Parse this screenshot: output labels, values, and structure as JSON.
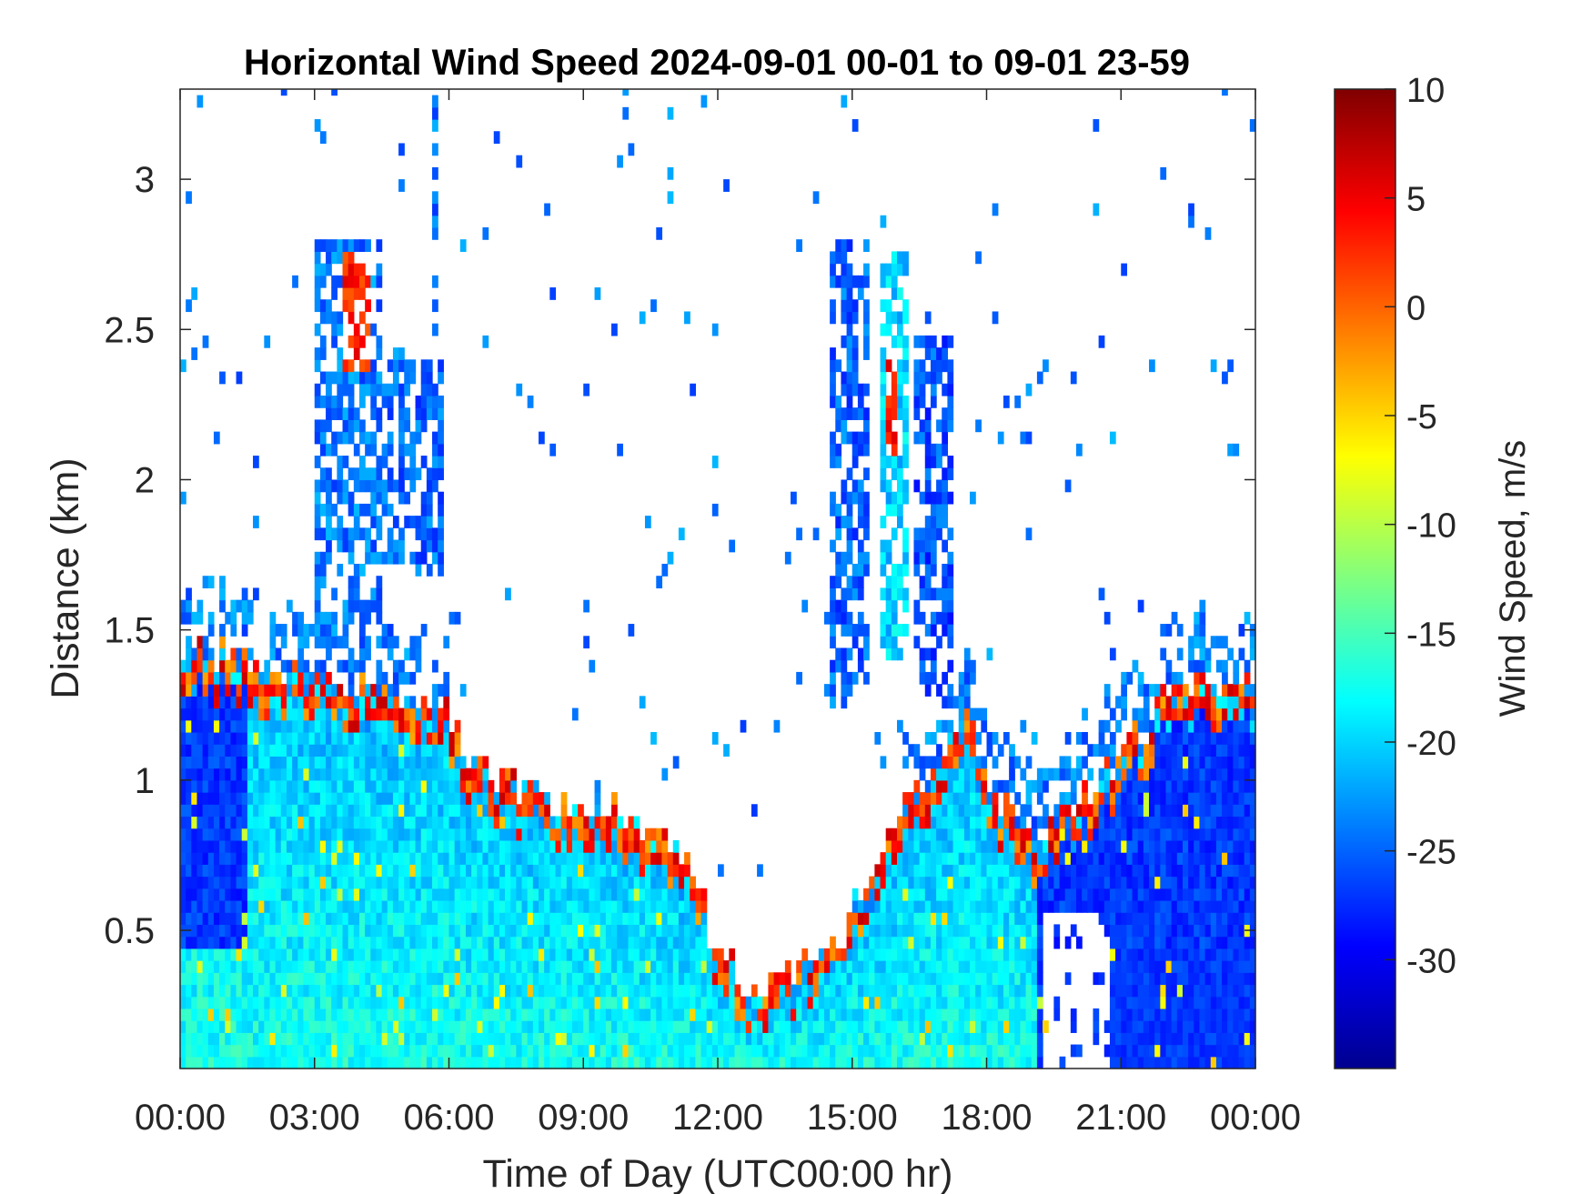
{
  "chart_data": {
    "type": "heatmap",
    "title": "Horizontal Wind Speed 2024-09-01 00-01 to 09-01 23-59",
    "xlabel": "Time of Day (UTC00:00 hr)",
    "ylabel": "Distance (km)",
    "colorbar_label": "Wind Speed, m/s",
    "xlim_hours": [
      0,
      24
    ],
    "ylim_km": [
      0.04,
      3.3
    ],
    "x_ticks": [
      {
        "hour": 0,
        "label": "00:00"
      },
      {
        "hour": 3,
        "label": "03:00"
      },
      {
        "hour": 6,
        "label": "06:00"
      },
      {
        "hour": 9,
        "label": "09:00"
      },
      {
        "hour": 12,
        "label": "12:00"
      },
      {
        "hour": 15,
        "label": "15:00"
      },
      {
        "hour": 18,
        "label": "18:00"
      },
      {
        "hour": 21,
        "label": "21:00"
      },
      {
        "hour": 24,
        "label": "00:00"
      }
    ],
    "y_ticks": [
      {
        "value": 0.5,
        "label": "0.5"
      },
      {
        "value": 1,
        "label": "1"
      },
      {
        "value": 1.5,
        "label": "1.5"
      },
      {
        "value": 2,
        "label": "2"
      },
      {
        "value": 2.5,
        "label": "2.5"
      },
      {
        "value": 3,
        "label": "3"
      }
    ],
    "colorbar": {
      "range": [
        -35,
        10
      ],
      "colormap": "jet",
      "ticks": [
        {
          "value": 10,
          "label": "10"
        },
        {
          "value": 5,
          "label": "5"
        },
        {
          "value": 0,
          "label": "0"
        },
        {
          "value": -5,
          "label": "-5"
        },
        {
          "value": -10,
          "label": "-10"
        },
        {
          "value": -15,
          "label": "-15"
        },
        {
          "value": -20,
          "label": "-20"
        },
        {
          "value": -25,
          "label": "-25"
        },
        {
          "value": -30,
          "label": "-30"
        }
      ]
    },
    "grid": false,
    "profile_resolution": {
      "hours": 0.125,
      "km": 0.04
    },
    "boundary_layer_top_km": [
      [
        0,
        1.35
      ],
      [
        1,
        1.4
      ],
      [
        2,
        1.3
      ],
      [
        3,
        1.3
      ],
      [
        4,
        1.3
      ],
      [
        5,
        1.2
      ],
      [
        5.8,
        1.25
      ],
      [
        6.5,
        1.05
      ],
      [
        7.5,
        0.95
      ],
      [
        8.5,
        0.9
      ],
      [
        9.5,
        0.88
      ],
      [
        10.5,
        0.8
      ],
      [
        11.5,
        0.65
      ],
      [
        12,
        0.45
      ],
      [
        12.5,
        0.3
      ],
      [
        13,
        0.25
      ],
      [
        13.5,
        0.35
      ],
      [
        14.3,
        0.4
      ],
      [
        15,
        0.55
      ],
      [
        15.5,
        0.7
      ],
      [
        16,
        0.85
      ],
      [
        17,
        1.05
      ],
      [
        17.5,
        1.2
      ],
      [
        18,
        0.95
      ],
      [
        19,
        0.8
      ],
      [
        20,
        0.9
      ],
      [
        21,
        1.05
      ],
      [
        22,
        1.25
      ],
      [
        23,
        1.3
      ],
      [
        24,
        1.3
      ]
    ],
    "layer_speed_m_s": {
      "surface": -17,
      "mid": -21,
      "residual_layer": -24,
      "night_lower": -27,
      "inversion_top": 7
    },
    "elevated_echo_features": [
      {
        "hour_range": [
          3,
          4.5
        ],
        "km_range": [
          1.5,
          2.8
        ],
        "speed_m_s": -24
      },
      {
        "hour_range": [
          3.6,
          4.3
        ],
        "km_range": [
          2.35,
          2.75
        ],
        "speed_m_s": 3
      },
      {
        "hour_range": [
          4.5,
          5.9
        ],
        "km_range": [
          1.7,
          2.4
        ],
        "speed_m_s": -25
      },
      {
        "hour_range": [
          5.6,
          5.8
        ],
        "km_range": [
          2.45,
          3.3
        ],
        "speed_m_s": -24
      },
      {
        "hour_range": [
          14.5,
          15.4
        ],
        "km_range": [
          1.3,
          2.8
        ],
        "speed_m_s": -25
      },
      {
        "hour_range": [
          15.6,
          16.2
        ],
        "km_range": [
          1.4,
          2.75
        ],
        "speed_m_s": -20
      },
      {
        "hour_range": [
          16.4,
          17.2
        ],
        "km_range": [
          1.3,
          2.5
        ],
        "speed_m_s": -26
      },
      {
        "hour_range": [
          15.7,
          16.0
        ],
        "km_range": [
          2.1,
          2.4
        ],
        "speed_m_s": 4
      }
    ],
    "data_gaps": [
      {
        "hour_range": [
          19.3,
          20.7
        ],
        "km_range": [
          0.04,
          0.55
        ]
      },
      {
        "hour_range": [
          13.9,
          14.9
        ],
        "km_range": [
          0.45,
          0.95
        ]
      },
      {
        "hour_range": [
          11.7,
          12.1
        ],
        "km_range": [
          0.45,
          0.85
        ]
      }
    ]
  }
}
